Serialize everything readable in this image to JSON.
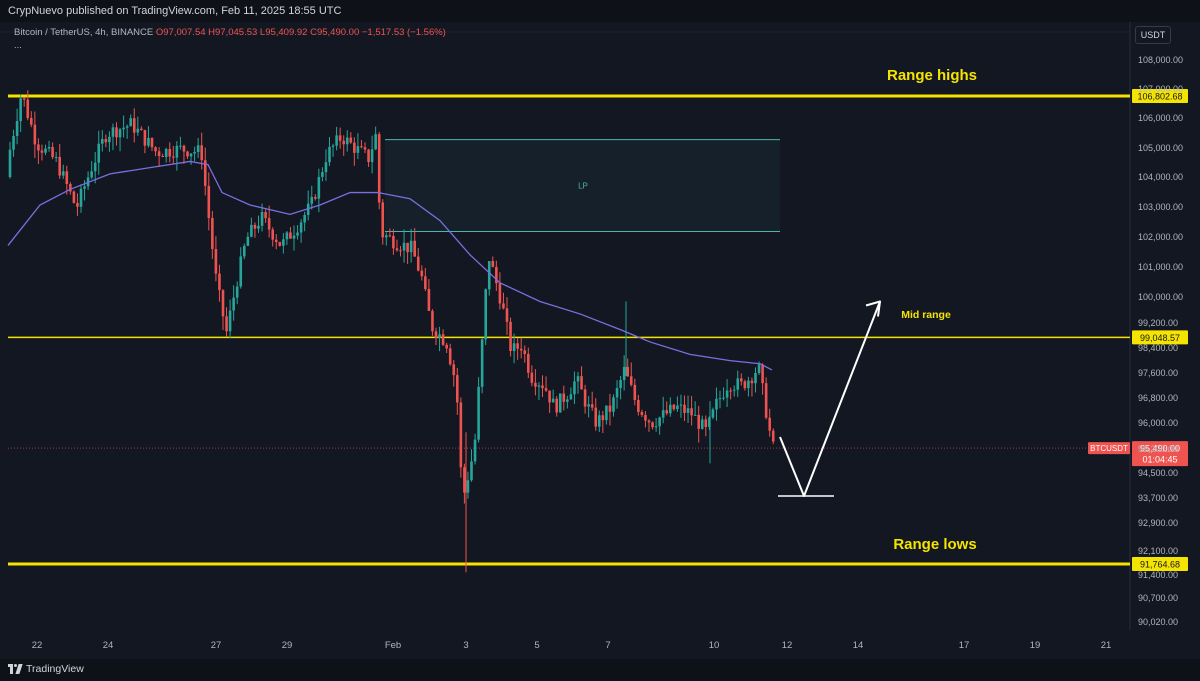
{
  "header": {
    "published": "CrypNuevo published on TradingView.com, Feb 11, 2025 18:55 UTC"
  },
  "legend": {
    "title": "Bitcoin / TetherUS, 4h, BINANCE",
    "ohlc": "O97,007.54 H97,045.53 L95,409.92 C95,490.00 −1,517.53 (−1.56%)",
    "more": "..."
  },
  "currency_button": "USDT",
  "footer": {
    "brand": "TradingView"
  },
  "colors": {
    "background": "#131722",
    "up": "#26a69a",
    "down": "#ef5350",
    "range_line": "#f5e400",
    "ma_line": "#7b6fe0",
    "zone": "#4db6ac",
    "arrow": "#ffffff"
  },
  "chart_data": {
    "type": "candlestick",
    "symbol": "BTCUSDT",
    "timeframe": "4h",
    "y_ticks": [
      "108,000.00",
      "107,000.00",
      "106,000.00",
      "105,000.00",
      "104,000.00",
      "103,000.00",
      "102,000.00",
      "101,000.00",
      "100,000.00",
      "99,200.00",
      "98,400.00",
      "97,600.00",
      "96,800.00",
      "96,000.00",
      "95,200.00",
      "94,500.00",
      "93,700.00",
      "92,900.00",
      "92,100.00",
      "91,400.00",
      "90,700.00",
      "90,020.00"
    ],
    "x_ticks": [
      "22",
      "24",
      "27",
      "29",
      "Feb",
      "3",
      "5",
      "7",
      "10",
      "12",
      "14",
      "17",
      "19",
      "21"
    ],
    "levels": [
      {
        "name": "Range highs",
        "value": 106802.68,
        "price_label": "106,802.68"
      },
      {
        "name": "Mid range",
        "value": 99048.57,
        "price_label": "99,048.57"
      },
      {
        "name": "Range lows",
        "value": 91764.68,
        "price_label": "91,764.68"
      }
    ],
    "zone_label": "LP",
    "zone": {
      "from": 102450,
      "to": 105400
    },
    "last_price": {
      "ticker": "BTCUSDT",
      "price": "95,490.00",
      "countdown": "01:04:45"
    },
    "projection": {
      "low": 93950,
      "target": 100200
    }
  }
}
